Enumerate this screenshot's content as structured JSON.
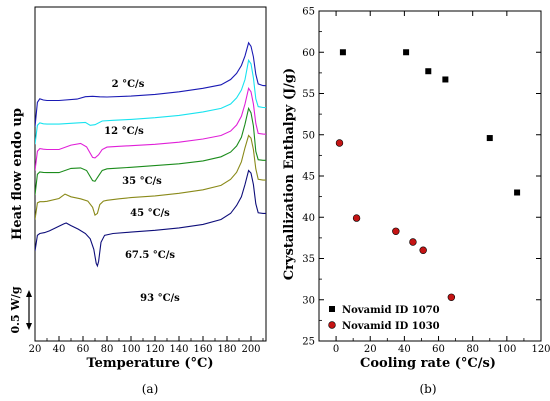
{
  "panel_a": {
    "label": "(a)",
    "xlabel": "Temperature (°C)",
    "ylabel": "Heat flow endo up",
    "scale_bar_label": "0.5 W/g",
    "curve_colors": [
      "#1a1ab4",
      "#19e3ef",
      "#e020d8",
      "#1c8c1c",
      "#8a8a1a",
      "#0e0e7a"
    ]
  },
  "panel_b": {
    "label": "(b)",
    "legend_position": "bottom-left"
  },
  "chart_data": [
    {
      "type": "line",
      "xlabel": "Temperature (°C)",
      "ylabel": "Heat flow endo up",
      "xlim": [
        20,
        220
      ],
      "x_ticks": [
        20,
        40,
        60,
        80,
        100,
        120,
        140,
        160,
        180,
        200
      ],
      "grid": false,
      "series": [
        {
          "name": "2 °C/s",
          "color": "#1a1ab4",
          "x": [
            20,
            22,
            24,
            27,
            30,
            40,
            55,
            62,
            68,
            74,
            80,
            100,
            120,
            140,
            160,
            175,
            183,
            188,
            192,
            195,
            198,
            200,
            202,
            204,
            206,
            210,
            215,
            220
          ],
          "y": [
            1.5,
            2.9,
            3.1,
            3.03,
            3.0,
            3.0,
            3.08,
            3.22,
            3.24,
            3.21,
            3.2,
            3.25,
            3.35,
            3.5,
            3.7,
            3.9,
            4.2,
            4.55,
            5.0,
            5.55,
            6.3,
            6.1,
            5.5,
            4.5,
            3.95,
            3.85,
            3.84,
            3.84
          ]
        },
        {
          "name": "12 °C/s",
          "color": "#19e3ef",
          "x": [
            20,
            22,
            24,
            27,
            30,
            40,
            55,
            62,
            66,
            70,
            76,
            85,
            100,
            120,
            140,
            160,
            175,
            183,
            188,
            192,
            195,
            198,
            200,
            202,
            204,
            206,
            210,
            215,
            220
          ],
          "y": [
            0.5,
            1.58,
            1.72,
            1.67,
            1.65,
            1.65,
            1.72,
            1.75,
            1.58,
            1.62,
            1.83,
            1.87,
            1.92,
            2.02,
            2.15,
            2.35,
            2.55,
            2.8,
            3.15,
            3.6,
            4.2,
            5.3,
            5.1,
            4.3,
            3.1,
            2.65,
            2.6,
            2.59,
            2.59
          ]
        },
        {
          "name": "35 °C/s",
          "color": "#e020d8",
          "x": [
            20,
            22,
            24,
            27,
            30,
            40,
            50,
            58,
            63,
            68,
            70,
            73,
            76,
            80,
            90,
            100,
            120,
            140,
            160,
            175,
            183,
            188,
            192,
            195,
            198,
            200,
            202,
            204,
            206,
            210,
            215,
            220
          ],
          "y": [
            -1.0,
            0.1,
            0.25,
            0.22,
            0.2,
            0.2,
            0.45,
            0.55,
            0.35,
            -0.25,
            -0.28,
            -0.1,
            0.2,
            0.34,
            0.38,
            0.42,
            0.5,
            0.62,
            0.8,
            1.0,
            1.25,
            1.6,
            2.1,
            2.8,
            3.7,
            3.5,
            2.8,
            1.7,
            1.12,
            1.08,
            1.07,
            1.07
          ]
        },
        {
          "name": "45 °C/s",
          "color": "#1c8c1c",
          "x": [
            20,
            22,
            24,
            27,
            30,
            40,
            50,
            58,
            63,
            68,
            70,
            73,
            76,
            80,
            90,
            100,
            120,
            140,
            160,
            175,
            183,
            188,
            192,
            195,
            198,
            200,
            202,
            204,
            206,
            210,
            215,
            220
          ],
          "y": [
            -2.4,
            -1.22,
            -1.08,
            -1.11,
            -1.12,
            -1.12,
            -0.88,
            -0.85,
            -1.0,
            -1.58,
            -1.62,
            -1.3,
            -1.0,
            -0.9,
            -0.86,
            -0.82,
            -0.72,
            -0.62,
            -0.45,
            -0.22,
            0.05,
            0.4,
            0.9,
            1.65,
            2.55,
            2.3,
            1.55,
            0.1,
            -0.38,
            -0.42,
            -0.42,
            -0.42
          ]
        },
        {
          "name": "67.5 °C/s",
          "color": "#8a8a1a",
          "x": [
            20,
            22,
            24,
            27,
            30,
            40,
            45,
            50,
            58,
            64,
            68,
            70,
            72,
            74,
            77,
            80,
            90,
            100,
            120,
            140,
            160,
            175,
            183,
            188,
            192,
            195,
            198,
            200,
            202,
            204,
            206,
            210,
            215,
            220
          ],
          "y": [
            -3.8,
            -2.85,
            -2.78,
            -2.78,
            -2.76,
            -2.6,
            -2.35,
            -2.5,
            -2.62,
            -2.75,
            -3.1,
            -3.55,
            -3.45,
            -2.95,
            -2.75,
            -2.7,
            -2.62,
            -2.55,
            -2.45,
            -2.3,
            -2.1,
            -1.85,
            -1.5,
            -1.1,
            -0.5,
            0.3,
            1.0,
            0.85,
            0.2,
            -0.9,
            -1.5,
            -1.55,
            -1.55,
            -1.55
          ]
        },
        {
          "name": "93 °C/s",
          "color": "#0e0e7a",
          "x": [
            20,
            22,
            24,
            28,
            32,
            38,
            44,
            46,
            50,
            56,
            62,
            66,
            69,
            71,
            72,
            73,
            75,
            78,
            85,
            100,
            120,
            140,
            160,
            175,
            183,
            188,
            192,
            195,
            198,
            200,
            202,
            204,
            206,
            210,
            215,
            220
          ],
          "y": [
            -5.6,
            -4.7,
            -4.6,
            -4.55,
            -4.45,
            -4.25,
            -4.05,
            -4.0,
            -4.15,
            -4.35,
            -4.6,
            -4.9,
            -5.5,
            -6.3,
            -6.45,
            -6.2,
            -5.1,
            -4.7,
            -4.6,
            -4.52,
            -4.42,
            -4.28,
            -4.08,
            -3.8,
            -3.45,
            -3.0,
            -2.5,
            -1.8,
            -1.0,
            -1.15,
            -1.8,
            -2.9,
            -3.42,
            -3.45,
            -3.45,
            -3.45
          ]
        }
      ],
      "annotations": [
        "2 °C/s",
        "12 °C/s",
        "35 °C/s",
        "45 °C/s",
        "67.5 °C/s",
        "93 °C/s"
      ]
    },
    {
      "type": "scatter",
      "xlabel": "Cooling rate (°C/s)",
      "ylabel": "Crystallization Enthalpy (J/g)",
      "xlim": [
        -10,
        120
      ],
      "ylim": [
        25,
        65
      ],
      "x_ticks": [
        0,
        20,
        40,
        60,
        80,
        100,
        120
      ],
      "y_ticks": [
        25,
        30,
        35,
        40,
        45,
        50,
        55,
        60,
        65
      ],
      "grid": false,
      "legend_position": "bottom-left",
      "series": [
        {
          "name": "Novamid ID 1070",
          "marker": "square",
          "color": "#000000",
          "x": [
            4,
            41,
            54,
            64,
            90,
            106
          ],
          "y": [
            60,
            60,
            57.7,
            56.7,
            49.6,
            43
          ]
        },
        {
          "name": "Novamid ID 1030",
          "marker": "circle",
          "color": "#c41414",
          "x": [
            2,
            12,
            35,
            45,
            51,
            67.5
          ],
          "y": [
            49,
            39.9,
            38.3,
            37,
            36,
            30.3
          ]
        }
      ]
    }
  ]
}
